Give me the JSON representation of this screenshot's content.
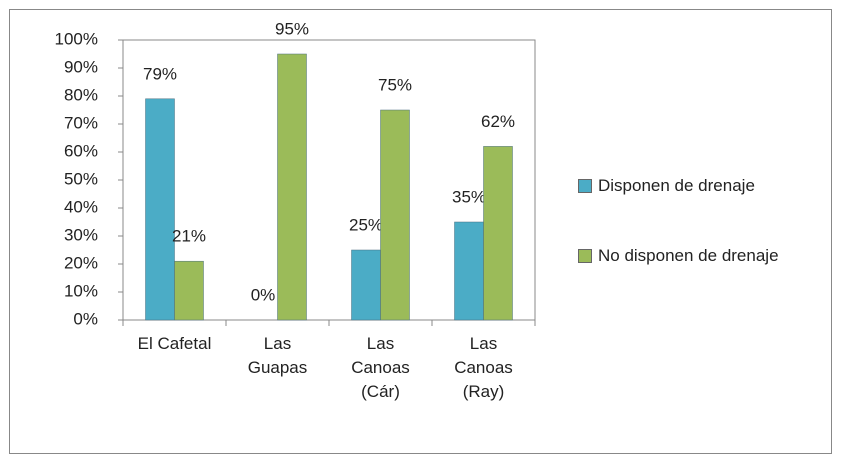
{
  "chart_data": {
    "type": "bar",
    "categories": [
      "El Cafetal",
      "Las Guapas",
      "Las Canoas (Cár)",
      "Las Canoas (Ray)"
    ],
    "series": [
      {
        "name": "Disponen de drenaje",
        "color": "#4bacc6",
        "values": [
          79,
          0,
          25,
          35
        ],
        "value_labels": [
          "79%",
          "0%",
          "25%",
          "35%"
        ]
      },
      {
        "name": "No disponen de drenaje",
        "color": "#9bbb59",
        "values": [
          21,
          95,
          75,
          62
        ],
        "value_labels": [
          "21%",
          "95%",
          "75%",
          "62%"
        ]
      }
    ],
    "ylim": [
      0,
      100
    ],
    "yticks": [
      {
        "value": 0,
        "label": "0%"
      },
      {
        "value": 10,
        "label": "10%"
      },
      {
        "value": 20,
        "label": "20%"
      },
      {
        "value": 30,
        "label": "30%"
      },
      {
        "value": 40,
        "label": "40%"
      },
      {
        "value": 50,
        "label": "50%"
      },
      {
        "value": 60,
        "label": "60%"
      },
      {
        "value": 70,
        "label": "70%"
      },
      {
        "value": 80,
        "label": "80%"
      },
      {
        "value": 90,
        "label": "90%"
      },
      {
        "value": 100,
        "label": "100%"
      }
    ],
    "grid": false,
    "legend": "right"
  }
}
